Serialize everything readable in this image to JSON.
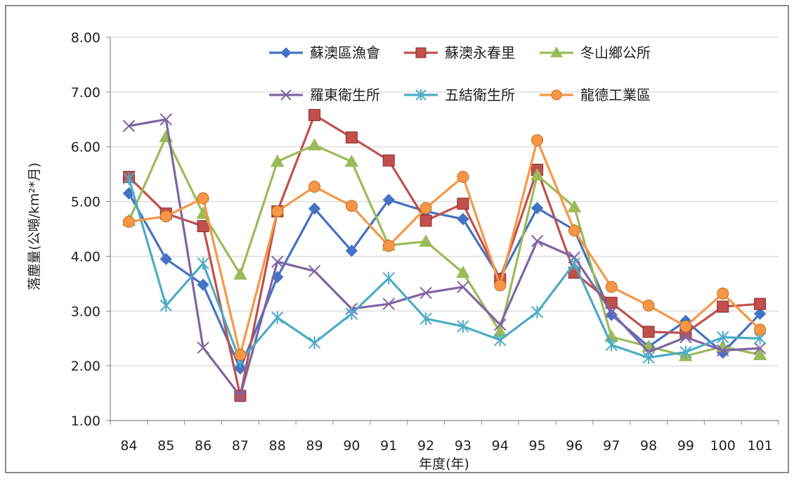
{
  "chart_data": {
    "type": "line",
    "title": "",
    "xlabel": "年度(年)",
    "ylabel": "落塵量(公噸/km²*月)",
    "ylim": [
      1.0,
      8.0
    ],
    "yticks": [
      "1.00",
      "2.00",
      "3.00",
      "4.00",
      "5.00",
      "6.00",
      "7.00",
      "8.00"
    ],
    "categories": [
      "84",
      "85",
      "86",
      "87",
      "88",
      "89",
      "90",
      "91",
      "92",
      "93",
      "94",
      "95",
      "96",
      "97",
      "98",
      "99",
      "100",
      "101"
    ],
    "grid": "horizontal",
    "legend_position": "top-right",
    "series": [
      {
        "name": "蘇澳區漁會",
        "color": "#4472C4",
        "marker": "diamond",
        "values": [
          5.15,
          3.95,
          3.48,
          1.95,
          3.62,
          4.87,
          4.1,
          5.03,
          4.82,
          4.68,
          3.6,
          4.88,
          4.48,
          2.93,
          2.35,
          2.82,
          2.24,
          2.95
        ]
      },
      {
        "name": "蘇澳永春里",
        "color": "#C0504D",
        "marker": "square",
        "values": [
          5.45,
          4.78,
          4.55,
          1.45,
          4.82,
          6.58,
          6.17,
          5.75,
          4.65,
          4.96,
          3.58,
          5.58,
          3.7,
          3.15,
          2.62,
          2.6,
          3.08,
          3.13
        ]
      },
      {
        "name": "冬山鄉公所",
        "color": "#9BBB59",
        "marker": "triangle",
        "values": [
          4.65,
          6.18,
          4.78,
          3.67,
          5.73,
          6.03,
          5.73,
          4.2,
          4.27,
          3.7,
          2.62,
          5.48,
          4.9,
          2.53,
          2.35,
          2.18,
          2.35,
          2.2
        ]
      },
      {
        "name": "羅東衛生所",
        "color": "#8064A2",
        "marker": "x",
        "values": [
          6.38,
          6.5,
          2.33,
          1.45,
          3.9,
          3.73,
          3.04,
          3.13,
          3.33,
          3.44,
          2.75,
          4.28,
          3.98,
          2.98,
          2.25,
          2.52,
          2.28,
          2.32
        ]
      },
      {
        "name": "五結衛生所",
        "color": "#4BACC6",
        "marker": "asterisk",
        "values": [
          5.42,
          3.1,
          3.87,
          2.08,
          2.88,
          2.42,
          2.95,
          3.6,
          2.86,
          2.72,
          2.47,
          2.98,
          3.87,
          2.38,
          2.15,
          2.25,
          2.52,
          2.5
        ]
      },
      {
        "name": "龍德工業區",
        "color": "#F79646",
        "marker": "circle",
        "values": [
          4.63,
          4.73,
          5.06,
          2.2,
          4.82,
          5.27,
          4.92,
          4.19,
          4.88,
          5.45,
          3.47,
          6.12,
          4.47,
          3.44,
          3.1,
          2.72,
          3.32,
          2.66
        ]
      }
    ]
  }
}
